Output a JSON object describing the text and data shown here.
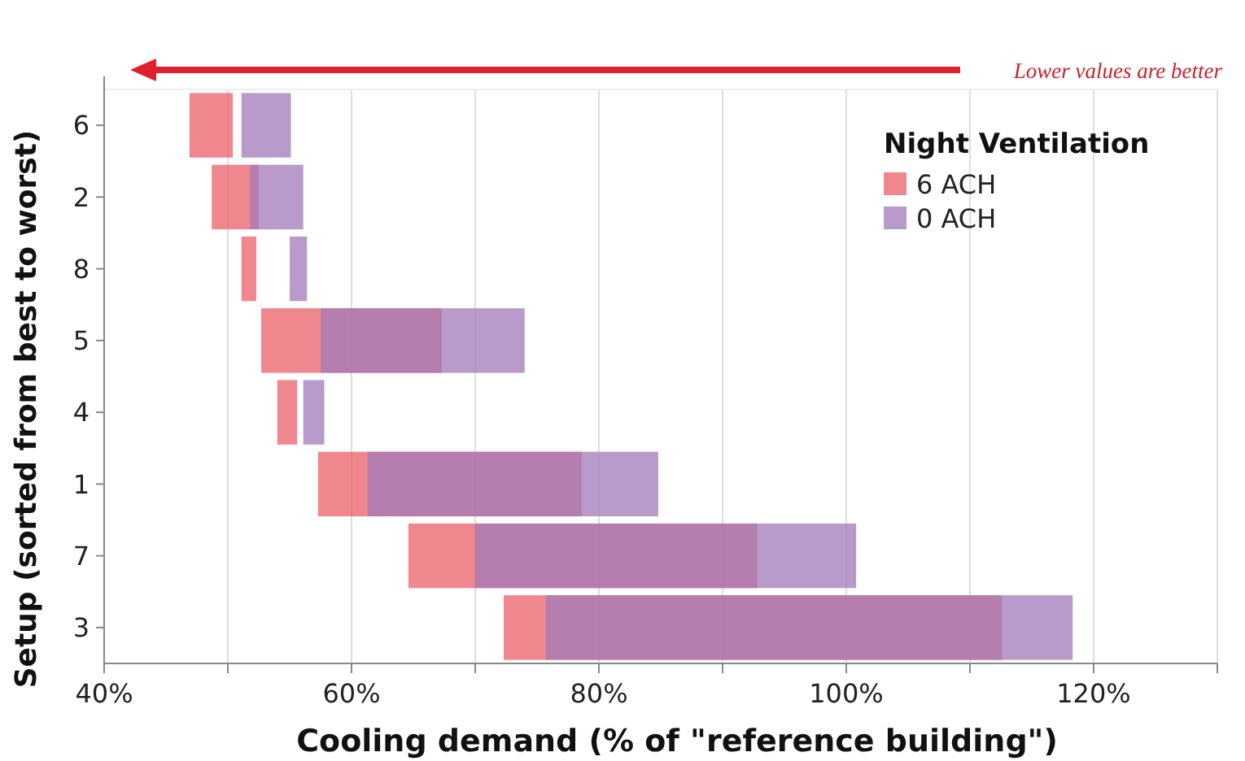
{
  "chart_data": {
    "type": "bar",
    "orientation": "horizontal",
    "xlabel": "Cooling demand (% of \"reference building\")",
    "ylabel": "Setup (sorted from best to worst)",
    "legend_title": "Night Ventilation",
    "legend": "top right",
    "grid": "x",
    "categories": [
      "6",
      "2",
      "8",
      "5",
      "4",
      "1",
      "7",
      "3"
    ],
    "xlim": [
      40,
      130
    ],
    "xticks": [
      {
        "value": 40,
        "label": "40%"
      },
      {
        "value": 50,
        "label": null
      },
      {
        "value": 60,
        "label": "60%"
      },
      {
        "value": 70,
        "label": null
      },
      {
        "value": 80,
        "label": "80%"
      },
      {
        "value": 90,
        "label": null
      },
      {
        "value": 100,
        "label": "100%"
      },
      {
        "value": 110,
        "label": null
      },
      {
        "value": 120,
        "label": "120%"
      },
      {
        "value": 130,
        "label": null
      }
    ],
    "series": [
      {
        "name": "6 ACH",
        "color": "#ec5f68",
        "base": [
          46.9,
          48.7,
          51.1,
          52.7,
          54.0,
          57.3,
          64.6,
          72.3
        ],
        "values": [
          3.5,
          3.8,
          1.2,
          14.6,
          1.6,
          21.3,
          28.2,
          40.3
        ]
      },
      {
        "name": "0 ACH",
        "color": "#a279b9",
        "base": [
          51.1,
          51.8,
          55.0,
          57.5,
          56.1,
          61.3,
          70.0,
          75.7
        ],
        "values": [
          4.0,
          4.3,
          1.4,
          16.5,
          1.7,
          23.5,
          30.8,
          42.6
        ]
      }
    ],
    "annotations": [
      "Lower values are better"
    ]
  }
}
